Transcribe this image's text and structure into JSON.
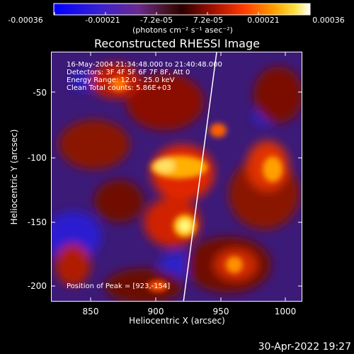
{
  "colorbar": {
    "tick_labels": [
      "-0.00036",
      "-0.00021",
      "-7.2e-05",
      "7.2e-05",
      "0.00021",
      "0.00036"
    ],
    "unit_label": "(photons cm⁻² s⁻¹ asec⁻²)",
    "colors": [
      "#0000ff",
      "#5a1fb0",
      "#6b2a8f",
      "#8a1b1b",
      "#e03000",
      "#ff8c00",
      "#ffd000",
      "#ffffff"
    ]
  },
  "plot": {
    "title": "Reconstructed RHESSI Image",
    "info_lines": [
      "16-May-2004 21:34:48.000 to 21:40:48.000",
      "Detectors: 3F 4F 5F 6F 7F 8F, Att 0",
      "Energy Range: 12.0 - 25.0 keV",
      "Clean     Total counts: 5.86E+03"
    ],
    "peak_label": "Position of Peak = [923,-154]",
    "xlabel": "Heliocentric X (arcsec)",
    "ylabel": "Heliocentric Y (arcsec)",
    "x_ticks": [
      "850",
      "900",
      "950",
      "1000"
    ],
    "y_ticks": [
      "-50",
      "-100",
      "-150",
      "-200"
    ],
    "x_range": [
      820,
      1012
    ],
    "y_range": [
      -214,
      -24
    ]
  },
  "footer": {
    "timestamp": "30-Apr-2022 19:27"
  }
}
